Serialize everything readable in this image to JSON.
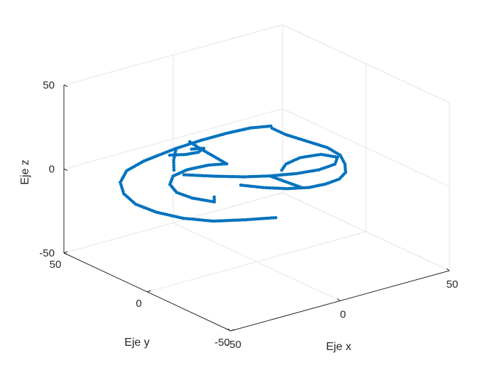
{
  "chart_data": {
    "type": "scatter",
    "projection": "3d",
    "xlabel": "Eje x",
    "ylabel": "Eje y",
    "zlabel": "Eje z",
    "xlim": [
      -50,
      50
    ],
    "ylim": [
      -50,
      50
    ],
    "zlim": [
      -50,
      50
    ],
    "xticks": [
      "-50",
      "0",
      "50"
    ],
    "yticks": [
      "-50",
      "0",
      "50"
    ],
    "zticks": [
      "-50",
      "0",
      "50"
    ],
    "grid": true,
    "marker_color": "#0072BD",
    "series": [
      {
        "name": "",
        "paths": [
          {
            "points": [
              [
                -18,
                -35,
                -1
              ],
              [
                -28,
                -30,
                -1
              ],
              [
                -38,
                -24,
                -1
              ],
              [
                -45,
                -15,
                -1
              ],
              [
                -49,
                -4,
                -1
              ],
              [
                -50,
                7,
                -1
              ],
              [
                -47,
                18,
                -1
              ],
              [
                -41,
                28,
                -1
              ],
              [
                -32,
                36,
                -1
              ],
              [
                -21,
                40,
                -1
              ],
              [
                -10,
                42,
                -1
              ],
              [
                -4,
                43,
                -1
              ]
            ]
          },
          {
            "points": [
              [
                -27,
                -10,
                0
              ],
              [
                -31,
                -2,
                0
              ],
              [
                -32,
                6,
                0
              ],
              [
                -29,
                14,
                0
              ],
              [
                -23,
                20,
                0
              ],
              [
                -15,
                22,
                0
              ],
              [
                -6,
                21,
                0
              ],
              [
                0,
                18,
                0
              ]
            ]
          },
          {
            "points": [
              [
                -27,
                -10,
                0
              ],
              [
                -24,
                -6,
                0
              ]
            ]
          },
          {
            "points": [
              [
                0,
                18,
                0
              ],
              [
                1,
                28,
                0
              ],
              [
                2,
                38,
                0
              ],
              [
                3,
                44,
                0
              ]
            ]
          },
          {
            "points": [
              [
                -4,
                43,
                -1
              ],
              [
                -12,
                34,
                -1
              ],
              [
                -18,
                26,
                -1
              ]
            ]
          },
          {
            "points": [
              [
                -4,
                43,
                -1
              ],
              [
                8,
                44,
                -1
              ],
              [
                20,
                44,
                -1
              ],
              [
                30,
                43,
                -1
              ],
              [
                37,
                40,
                -1
              ]
            ]
          },
          {
            "points": [
              [
                -18,
                20,
                -1
              ],
              [
                -10,
                12,
                -1
              ],
              [
                -2,
                5,
                -1
              ],
              [
                6,
                0,
                -1
              ],
              [
                15,
                -4,
                -1
              ],
              [
                24,
                -6,
                -1
              ],
              [
                32,
                -5,
                -1
              ],
              [
                37,
                0,
                -1
              ],
              [
                34,
                6,
                -1
              ],
              [
                26,
                8,
                -1
              ],
              [
                18,
                6,
                -1
              ],
              [
                13,
                2,
                -1
              ]
            ]
          },
          {
            "points": [
              [
                -8,
                -1,
                -1
              ],
              [
                -3,
                -8,
                -1
              ],
              [
                3,
                -14,
                -1
              ],
              [
                10,
                -18,
                -1
              ],
              [
                17,
                -19,
                -1
              ],
              [
                24,
                -18,
                -1
              ],
              [
                30,
                -14,
                -1
              ],
              [
                35,
                -7,
                -1
              ],
              [
                39,
                1,
                -1
              ],
              [
                40,
                10,
                -1
              ],
              [
                38,
                20,
                -1
              ],
              [
                36,
                30,
                -1
              ],
              [
                36,
                38,
                -1
              ]
            ]
          },
          {
            "points": [
              [
                -10,
                39,
                -1
              ],
              [
                -5,
                36,
                -1
              ],
              [
                0,
                35,
                -1
              ],
              [
                4,
                37,
                -1
              ],
              [
                0,
                39,
                -1
              ]
            ]
          },
          {
            "points": [
              [
                5,
                -2,
                0
              ],
              [
                6,
                -10,
                0
              ],
              [
                7,
                -18,
                0
              ]
            ]
          }
        ]
      }
    ]
  }
}
